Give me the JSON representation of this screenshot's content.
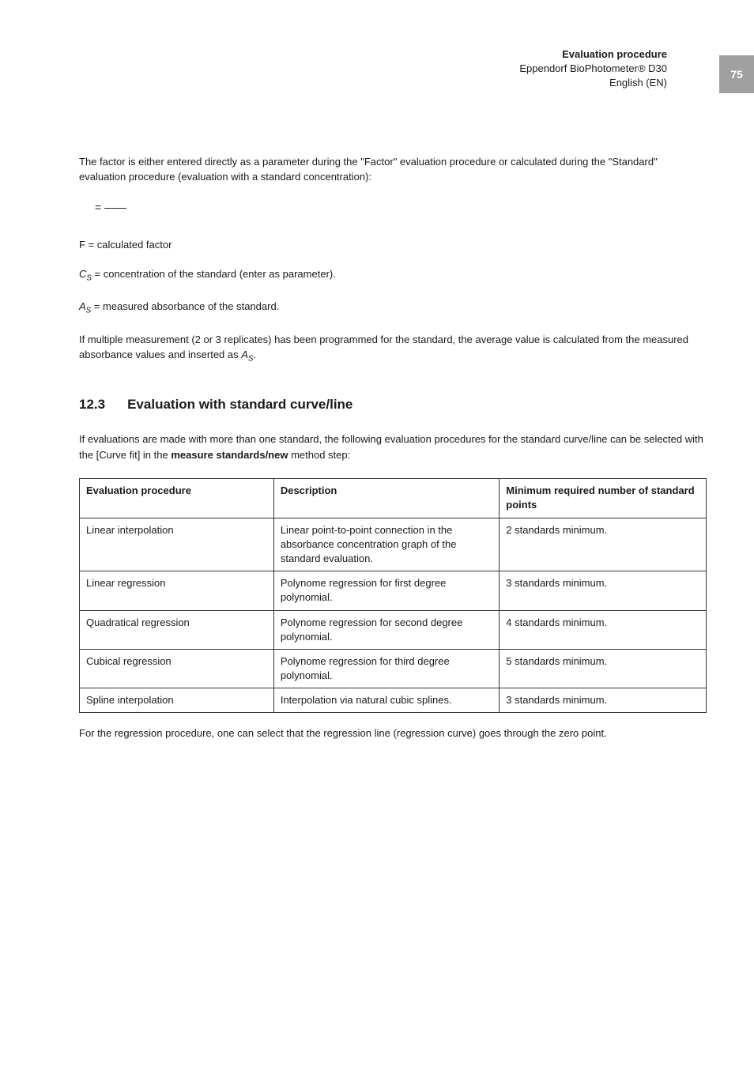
{
  "page_number": "75",
  "header": {
    "title": "Evaluation procedure",
    "product": "Eppendorf BioPhotometer® D30",
    "language": "English (EN)"
  },
  "intro_text": "The factor is either entered directly as a parameter during the \"Factor\" evaluation procedure or calculated during the \"Standard\" evaluation procedure (evaluation with a standard concentration):",
  "formula_display": "= ——",
  "definitions": {
    "f_label": "F = calculated factor",
    "cs_prefix": "C",
    "cs_sub": "S",
    "cs_text": " = concentration of the standard (enter as parameter).",
    "as_prefix": "A",
    "as_sub": "S",
    "as_text": " = measured absorbance of the standard.",
    "multi_prefix": "If multiple measurement (2 or 3 replicates) has been programmed for the standard, the average value is calculated from the measured absorbance values and inserted as ",
    "multi_sym_prefix": "A",
    "multi_sym_sub": "S",
    "multi_suffix": "."
  },
  "section": {
    "number": "12.3",
    "title": "Evaluation with standard curve/line",
    "intro_before": "If evaluations are made with more than one standard, the following evaluation procedures for the standard curve/line can be selected with the [Curve fit] in the ",
    "intro_bold": "measure standards/new",
    "intro_after": " method step:"
  },
  "table": {
    "headers": {
      "c1": "Evaluation procedure",
      "c2": "Description",
      "c3": "Minimum required number of standard points"
    },
    "rows": [
      {
        "c1": "Linear interpolation",
        "c2": "Linear point-to-point connection in the absorbance concentration graph of the standard evaluation.",
        "c3": "2 standards minimum."
      },
      {
        "c1": "Linear regression",
        "c2": "Polynome regression for first degree polynomial.",
        "c3": "3 standards minimum."
      },
      {
        "c1": "Quadratical regression",
        "c2": "Polynome regression for second degree polynomial.",
        "c3": "4 standards minimum."
      },
      {
        "c1": "Cubical regression",
        "c2": "Polynome regression for third degree polynomial.",
        "c3": "5 standards minimum."
      },
      {
        "c1": "Spline interpolation",
        "c2": "Interpolation via natural cubic splines.",
        "c3": "3 standards minimum."
      }
    ]
  },
  "footer_text": "For the regression procedure, one can select that the regression line (regression curve) goes through the zero point."
}
